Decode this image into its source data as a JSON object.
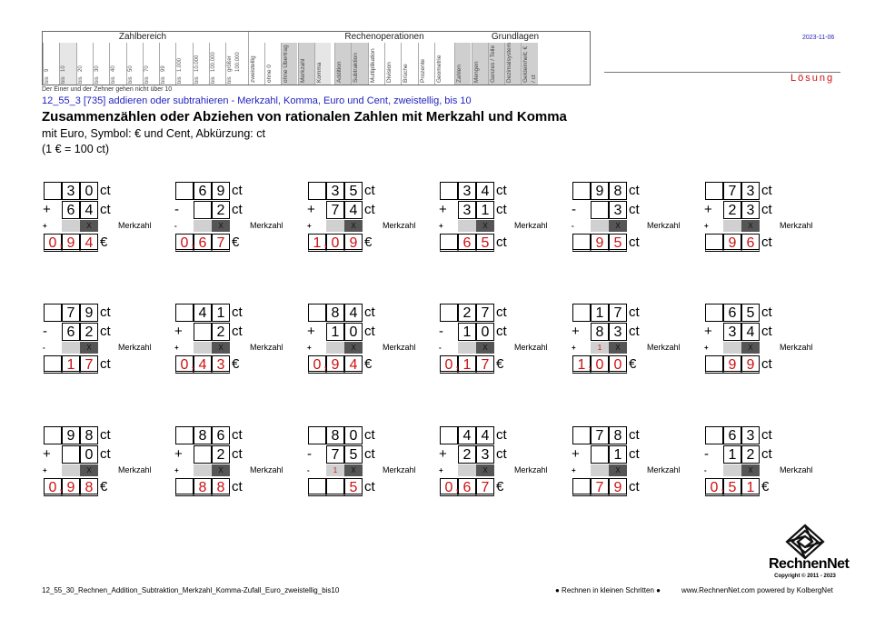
{
  "header": {
    "sections": [
      "Zahlbereich",
      "Rechenoperationen",
      "Grundlagen"
    ],
    "zahlbereich_values": [
      "9",
      "10",
      "20",
      "30",
      "40",
      "50",
      "70",
      "99",
      "1.000",
      "10.000",
      "100.000",
      "größer 100.000"
    ],
    "bis_label": "bis",
    "other_cells": [
      "zweistellig",
      "ohne 0",
      "ohne Übertrag",
      "Merkzahl",
      "Komma",
      "Addition",
      "Subtraktion",
      "Multiplikation",
      "Division",
      "Brüche",
      "Prozente",
      "Geometrie",
      "Zahlen",
      "Mengen",
      "Ganzes / Teile",
      "Dezimalsystem",
      "Geldeinheit; € / ct"
    ],
    "date": "2023-11-06",
    "loesung": "Lösung"
  },
  "note": "Der Einer und der Zehner gehen nicht über 10",
  "code_line": "12_55_3   [735]   addieren oder subtrahieren - Merkzahl, Komma, Euro und Cent, zweistellig, bis 10",
  "title": "Zusammenzählen oder Abziehen von rationalen Zahlen mit Merkzahl und Komma",
  "subtitle1": "mit Euro, Symbol: € und Cent, Abkürzung: ct",
  "subtitle2": "(1 € = 100 ct)",
  "merkzahl_label": "Merkzahl",
  "exercises": [
    {
      "a": [
        "3",
        "0"
      ],
      "op": "+",
      "b": [
        "6",
        "4"
      ],
      "mark": "",
      "res": [
        "0",
        "9",
        "4"
      ],
      "comma": true,
      "unit": "€"
    },
    {
      "a": [
        "6",
        "9"
      ],
      "op": "-",
      "b": [
        "",
        "2"
      ],
      "mark": "",
      "res": [
        "0",
        "6",
        "7"
      ],
      "comma": true,
      "unit": "€"
    },
    {
      "a": [
        "3",
        "5"
      ],
      "op": "+",
      "b": [
        "7",
        "4"
      ],
      "mark": "",
      "res": [
        "1",
        "0",
        "9"
      ],
      "comma": true,
      "unit": "€"
    },
    {
      "a": [
        "3",
        "4"
      ],
      "op": "+",
      "b": [
        "3",
        "1"
      ],
      "mark": "",
      "res": [
        "",
        "6",
        "5"
      ],
      "comma": false,
      "unit": "ct"
    },
    {
      "a": [
        "9",
        "8"
      ],
      "op": "-",
      "b": [
        "",
        "3"
      ],
      "mark": "",
      "res": [
        "",
        "9",
        "5"
      ],
      "comma": false,
      "unit": "ct"
    },
    {
      "a": [
        "7",
        "3"
      ],
      "op": "+",
      "b": [
        "2",
        "3"
      ],
      "mark": "",
      "res": [
        "",
        "9",
        "6"
      ],
      "comma": false,
      "unit": "ct"
    },
    {
      "a": [
        "7",
        "9"
      ],
      "op": "-",
      "b": [
        "6",
        "2"
      ],
      "mark": "",
      "res": [
        "",
        "1",
        "7"
      ],
      "comma": false,
      "unit": "ct"
    },
    {
      "a": [
        "4",
        "1"
      ],
      "op": "+",
      "b": [
        "",
        "2"
      ],
      "mark": "",
      "res": [
        "0",
        "4",
        "3"
      ],
      "comma": true,
      "unit": "€"
    },
    {
      "a": [
        "8",
        "4"
      ],
      "op": "+",
      "b": [
        "1",
        "0"
      ],
      "mark": "",
      "res": [
        "0",
        "9",
        "4"
      ],
      "comma": true,
      "unit": "€"
    },
    {
      "a": [
        "2",
        "7"
      ],
      "op": "-",
      "b": [
        "1",
        "0"
      ],
      "mark": "",
      "res": [
        "0",
        "1",
        "7"
      ],
      "comma": true,
      "unit": "€"
    },
    {
      "a": [
        "1",
        "7"
      ],
      "op": "+",
      "b": [
        "8",
        "3"
      ],
      "mark": "1",
      "res": [
        "1",
        "0",
        "0"
      ],
      "comma": true,
      "unit": "€"
    },
    {
      "a": [
        "6",
        "5"
      ],
      "op": "+",
      "b": [
        "3",
        "4"
      ],
      "mark": "",
      "res": [
        "",
        "9",
        "9"
      ],
      "comma": false,
      "unit": "ct"
    },
    {
      "a": [
        "9",
        "8"
      ],
      "op": "+",
      "b": [
        "",
        "0"
      ],
      "mark": "",
      "res": [
        "0",
        "9",
        "8"
      ],
      "comma": true,
      "unit": "€"
    },
    {
      "a": [
        "8",
        "6"
      ],
      "op": "+",
      "b": [
        "",
        "2"
      ],
      "mark": "",
      "res": [
        "",
        "8",
        "8"
      ],
      "comma": false,
      "unit": "ct"
    },
    {
      "a": [
        "8",
        "0"
      ],
      "op": "-",
      "b": [
        "7",
        "5"
      ],
      "mark": "1",
      "res": [
        "",
        "",
        "5"
      ],
      "comma": false,
      "unit": "ct"
    },
    {
      "a": [
        "4",
        "4"
      ],
      "op": "+",
      "b": [
        "2",
        "3"
      ],
      "mark": "",
      "res": [
        "0",
        "6",
        "7"
      ],
      "comma": true,
      "unit": "€"
    },
    {
      "a": [
        "7",
        "8"
      ],
      "op": "+",
      "b": [
        "",
        "1"
      ],
      "mark": "",
      "res": [
        "",
        "7",
        "9"
      ],
      "comma": false,
      "unit": "ct"
    },
    {
      "a": [
        "6",
        "3"
      ],
      "op": "-",
      "b": [
        "1",
        "2"
      ],
      "mark": "",
      "res": [
        "0",
        "5",
        "1"
      ],
      "comma": true,
      "unit": "€"
    }
  ],
  "unit_ct": "ct",
  "mark_x": "X",
  "footer": {
    "file": "12_55_30_Rechnen_Addition_Subtraktion_Merkzahl_Komma-Zufall_Euro_zweistellig_bis10",
    "middle": "● Rechnen in kleinen Schritten ●",
    "url": "www.RechnenNet.com powered by KolbergNet",
    "logo_name": "RechnenNet",
    "copyright": "Copyright © 2011 - 2023"
  }
}
